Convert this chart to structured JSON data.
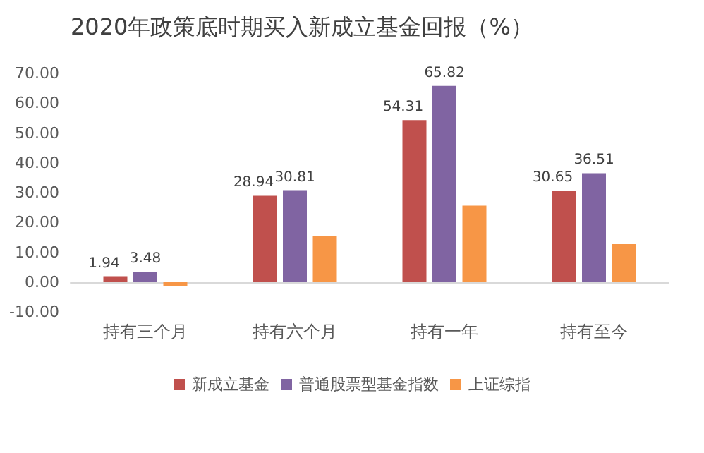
{
  "chart_data": {
    "type": "bar",
    "title": "2020年政策底时期买入新成立基金回报（%）",
    "categories": [
      "持有三个月",
      "持有六个月",
      "持有一年",
      "持有至今"
    ],
    "series": [
      {
        "name": "新成立基金",
        "color": "#c0504d",
        "values": [
          1.94,
          28.94,
          54.31,
          30.65
        ],
        "value_labels": [
          "1.94",
          "28.94",
          "54.31",
          "30.65"
        ]
      },
      {
        "name": "普通股票型基金指数",
        "color": "#8064a2",
        "values": [
          3.48,
          30.81,
          65.82,
          36.51
        ],
        "value_labels": [
          "3.48",
          "30.81",
          "65.82",
          "36.51"
        ]
      },
      {
        "name": "上证综指",
        "color": "#f79646",
        "values": [
          -1.5,
          15.3,
          25.6,
          12.7
        ]
      }
    ],
    "ylim": [
      -10,
      70
    ],
    "yticks": [
      {
        "value": -10,
        "label": "-10.00"
      },
      {
        "value": 0,
        "label": "0.00"
      },
      {
        "value": 10,
        "label": "10.00"
      },
      {
        "value": 20,
        "label": "20.00"
      },
      {
        "value": 30,
        "label": "30.00"
      },
      {
        "value": 40,
        "label": "40.00"
      },
      {
        "value": 50,
        "label": "50.00"
      },
      {
        "value": 60,
        "label": "60.00"
      },
      {
        "value": 70,
        "label": "70.00"
      }
    ],
    "grid": false,
    "legend": "bottom"
  }
}
